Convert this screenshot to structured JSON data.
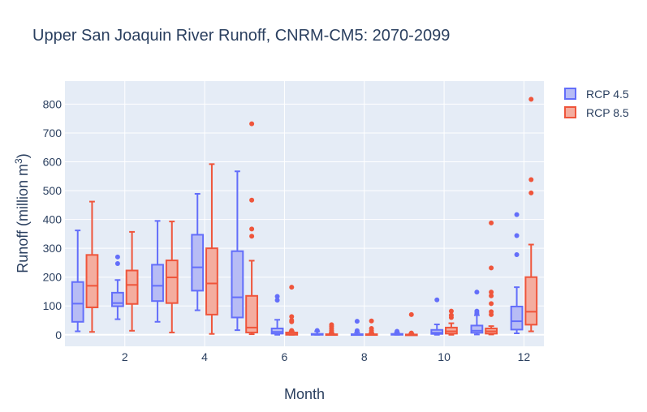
{
  "chart_data": {
    "type": "box",
    "title": "Upper San Joaquin River Runoff, CNRM-CM5: 2070-2099",
    "xlabel": "Month",
    "ylabel": "Runoff (million m",
    "ylabel_sup": "3",
    "ylabel_close": ")",
    "xlim": [
      0.5,
      12.5
    ],
    "ylim": [
      -40,
      880
    ],
    "x_ticks": [
      2,
      4,
      6,
      8,
      10,
      12
    ],
    "y_ticks": [
      0,
      100,
      200,
      300,
      400,
      500,
      600,
      700,
      800
    ],
    "grid": true,
    "legend_position": "right",
    "series": [
      {
        "name": "RCP 4.5",
        "color": "#636efa",
        "fill": "#b7bcf5",
        "boxes": [
          {
            "month": 1,
            "whisker_low": 12,
            "q1": 45,
            "median": 108,
            "q3": 183,
            "whisker_high": 362,
            "outliers": []
          },
          {
            "month": 2,
            "whisker_low": 54,
            "q1": 99,
            "median": 110,
            "q3": 146,
            "whisker_high": 190,
            "outliers": [
              247,
              270
            ]
          },
          {
            "month": 3,
            "whisker_low": 45,
            "q1": 117,
            "median": 170,
            "q3": 243,
            "whisker_high": 395,
            "outliers": []
          },
          {
            "month": 4,
            "whisker_low": 85,
            "q1": 153,
            "median": 234,
            "q3": 347,
            "whisker_high": 489,
            "outliers": []
          },
          {
            "month": 5,
            "whisker_low": 16,
            "q1": 60,
            "median": 130,
            "q3": 290,
            "whisker_high": 567,
            "outliers": []
          },
          {
            "month": 6,
            "whisker_low": 0,
            "q1": 4,
            "median": 10,
            "q3": 22,
            "whisker_high": 52,
            "outliers": [
              120,
              133
            ]
          },
          {
            "month": 7,
            "whisker_low": 0,
            "q1": 0,
            "median": 1,
            "q3": 3,
            "whisker_high": 12,
            "outliers": [
              15
            ]
          },
          {
            "month": 8,
            "whisker_low": 0,
            "q1": 0,
            "median": 1,
            "q3": 2,
            "whisker_high": 8,
            "outliers": [
              14,
              47
            ]
          },
          {
            "month": 9,
            "whisker_low": 0,
            "q1": 0,
            "median": 1,
            "q3": 3,
            "whisker_high": 8,
            "outliers": [
              12
            ]
          },
          {
            "month": 10,
            "whisker_low": 0,
            "q1": 3,
            "median": 7,
            "q3": 17,
            "whisker_high": 36,
            "outliers": [
              121
            ]
          },
          {
            "month": 11,
            "whisker_low": 1,
            "q1": 7,
            "median": 14,
            "q3": 32,
            "whisker_high": 68,
            "outliers": [
              75,
              82,
              148
            ]
          },
          {
            "month": 12,
            "whisker_low": 5,
            "q1": 18,
            "median": 47,
            "q3": 98,
            "whisker_high": 165,
            "outliers": [
              278,
              344,
              417
            ]
          }
        ]
      },
      {
        "name": "RCP 8.5",
        "color": "#ef553b",
        "fill": "#f4ad9f",
        "boxes": [
          {
            "month": 1,
            "whisker_low": 10,
            "q1": 95,
            "median": 170,
            "q3": 277,
            "whisker_high": 462,
            "outliers": []
          },
          {
            "month": 2,
            "whisker_low": 14,
            "q1": 107,
            "median": 173,
            "q3": 223,
            "whisker_high": 357,
            "outliers": []
          },
          {
            "month": 3,
            "whisker_low": 8,
            "q1": 110,
            "median": 199,
            "q3": 258,
            "whisker_high": 393,
            "outliers": []
          },
          {
            "month": 4,
            "whisker_low": 3,
            "q1": 70,
            "median": 178,
            "q3": 300,
            "whisker_high": 592,
            "outliers": []
          },
          {
            "month": 5,
            "whisker_low": 2,
            "q1": 8,
            "median": 25,
            "q3": 135,
            "whisker_high": 257,
            "outliers": [
              342,
              367,
              467,
              732
            ]
          },
          {
            "month": 6,
            "whisker_low": 0,
            "q1": 0,
            "median": 2,
            "q3": 8,
            "whisker_high": 12,
            "outliers": [
              15,
              45,
              50,
              63,
              165
            ]
          },
          {
            "month": 7,
            "whisker_low": 0,
            "q1": 0,
            "median": 0,
            "q3": 2,
            "whisker_high": 5,
            "outliers": [
              10,
              15,
              22,
              29,
              35
            ]
          },
          {
            "month": 8,
            "whisker_low": 0,
            "q1": 0,
            "median": 0,
            "q3": 2,
            "whisker_high": 5,
            "outliers": [
              8,
              14,
              22,
              48
            ]
          },
          {
            "month": 9,
            "whisker_low": 0,
            "q1": 0,
            "median": 0,
            "q3": 1,
            "whisker_high": 4,
            "outliers": [
              6,
              70
            ]
          },
          {
            "month": 10,
            "whisker_low": 0,
            "q1": 4,
            "median": 12,
            "q3": 25,
            "whisker_high": 40,
            "outliers": [
              60,
              68,
              82
            ]
          },
          {
            "month": 11,
            "whisker_low": 1,
            "q1": 4,
            "median": 12,
            "q3": 22,
            "whisker_high": 30,
            "outliers": [
              70,
              80,
              108,
              135,
              148,
              232,
              388
            ]
          },
          {
            "month": 12,
            "whisker_low": 12,
            "q1": 35,
            "median": 80,
            "q3": 200,
            "whisker_high": 313,
            "outliers": [
              492,
              538,
              817
            ]
          }
        ]
      }
    ]
  }
}
